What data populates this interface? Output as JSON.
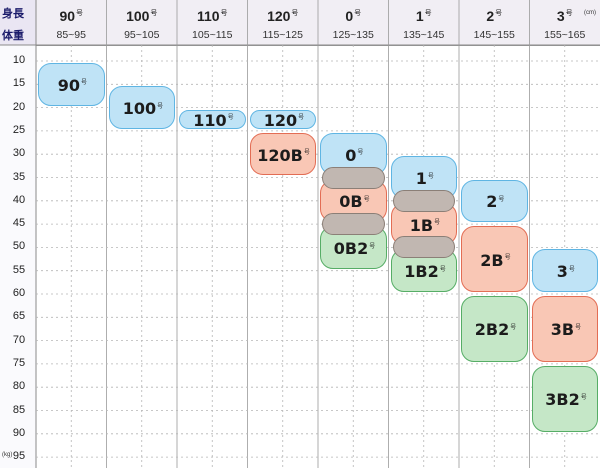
{
  "corner": {
    "top": "身長",
    "bottom": "体重"
  },
  "units": {
    "height": "(cm)",
    "weight": "(kg)"
  },
  "columns": [
    {
      "size": "90",
      "unit": "号",
      "range": "85~95"
    },
    {
      "size": "100",
      "unit": "号",
      "range": "95~105"
    },
    {
      "size": "110",
      "unit": "号",
      "range": "105~115"
    },
    {
      "size": "120",
      "unit": "号",
      "range": "115~125"
    },
    {
      "size": "0",
      "unit": "号",
      "range": "125~135"
    },
    {
      "size": "1",
      "unit": "号",
      "range": "135~145"
    },
    {
      "size": "2",
      "unit": "号",
      "range": "145~155"
    },
    {
      "size": "3",
      "unit": "号",
      "range": "155~165"
    }
  ],
  "weights": [
    "10",
    "15",
    "20",
    "25",
    "30",
    "35",
    "40",
    "45",
    "50",
    "55",
    "60",
    "65",
    "70",
    "75",
    "80",
    "85",
    "90",
    "95"
  ],
  "sizes": [
    {
      "label": "90",
      "suffix": "号",
      "color": "blue",
      "col": 0,
      "weight_from": 10,
      "weight_to": 20
    },
    {
      "label": "100",
      "suffix": "号",
      "color": "blue",
      "col": 1,
      "weight_from": 15,
      "weight_to": 25
    },
    {
      "label": "110",
      "suffix": "号",
      "color": "blue",
      "col": 2,
      "weight_from": 20,
      "weight_to": 25
    },
    {
      "label": "120",
      "suffix": "号",
      "color": "blue",
      "col": 3,
      "weight_from": 20,
      "weight_to": 25
    },
    {
      "label": "120B",
      "suffix": "号",
      "color": "red",
      "col": 3,
      "weight_from": 25,
      "weight_to": 35
    },
    {
      "label": "0",
      "suffix": "号",
      "color": "blue",
      "col": 4,
      "weight_from": 25,
      "weight_to": 35
    },
    {
      "label": "0B",
      "suffix": "号",
      "color": "red",
      "col": 4,
      "weight_from": 35,
      "weight_to": 45
    },
    {
      "label": "0B2",
      "suffix": "号",
      "color": "green",
      "col": 4,
      "weight_from": 45,
      "weight_to": 55
    },
    {
      "label": "1",
      "suffix": "号",
      "color": "blue",
      "col": 5,
      "weight_from": 30,
      "weight_to": 40
    },
    {
      "label": "1B",
      "suffix": "号",
      "color": "red",
      "col": 5,
      "weight_from": 40,
      "weight_to": 50
    },
    {
      "label": "1B2",
      "suffix": "号",
      "color": "green",
      "col": 5,
      "weight_from": 50,
      "weight_to": 60
    },
    {
      "label": "2",
      "suffix": "号",
      "color": "blue",
      "col": 6,
      "weight_from": 35,
      "weight_to": 45
    },
    {
      "label": "2B",
      "suffix": "号",
      "color": "red",
      "col": 6,
      "weight_from": 45,
      "weight_to": 60
    },
    {
      "label": "2B2",
      "suffix": "号",
      "color": "green",
      "col": 6,
      "weight_from": 60,
      "weight_to": 75
    },
    {
      "label": "3",
      "suffix": "号",
      "color": "blue",
      "col": 7,
      "weight_from": 50,
      "weight_to": 60
    },
    {
      "label": "3B",
      "suffix": "号",
      "color": "red",
      "col": 7,
      "weight_from": 60,
      "weight_to": 75
    },
    {
      "label": "3B2",
      "suffix": "号",
      "color": "green",
      "col": 7,
      "weight_from": 75,
      "weight_to": 90
    }
  ],
  "overlaps": [
    {
      "col": 4,
      "weight": 35
    },
    {
      "col": 4,
      "weight": 45
    },
    {
      "col": 5,
      "weight": 40
    },
    {
      "col": 5,
      "weight": 50
    }
  ],
  "colors": {
    "blue": "#bfe3f6",
    "red": "#f9c7b5",
    "green": "#c5e7c7",
    "gray": "#c1b7b1"
  }
}
